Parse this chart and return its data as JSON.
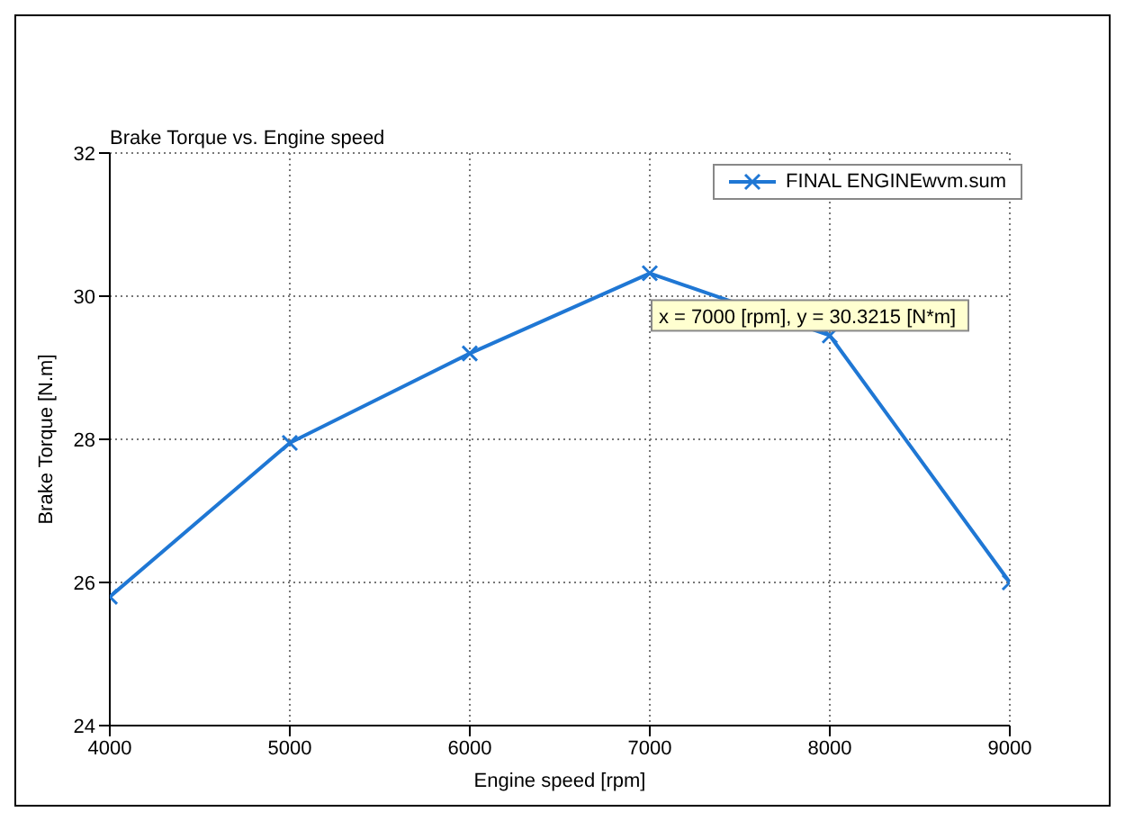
{
  "chart_data": {
    "type": "line",
    "title": "Brake Torque vs. Engine speed",
    "xlabel": "Engine speed  [rpm]",
    "ylabel": "Brake Torque  [N.m]",
    "x": [
      4000,
      5000,
      6000,
      7000,
      8000,
      9000
    ],
    "series": [
      {
        "name": "FINAL ENGINEwvm.sum",
        "color": "#1f77d4",
        "values": [
          25.8,
          27.95,
          29.2,
          30.32,
          29.45,
          26.0
        ]
      }
    ],
    "xlim": [
      4000,
      9000
    ],
    "xticks": [
      4000,
      5000,
      6000,
      7000,
      8000,
      9000
    ],
    "ylim": [
      24,
      32
    ],
    "yticks": [
      24,
      26,
      28,
      30,
      32
    ],
    "grid": true,
    "legend": "top right",
    "marker": "cross",
    "line_style": "solid",
    "annotations": [
      {
        "text": "x = 7000 [rpm], y = 30.3215 [N*m]",
        "x": 7000,
        "y": 30.3215
      }
    ]
  }
}
